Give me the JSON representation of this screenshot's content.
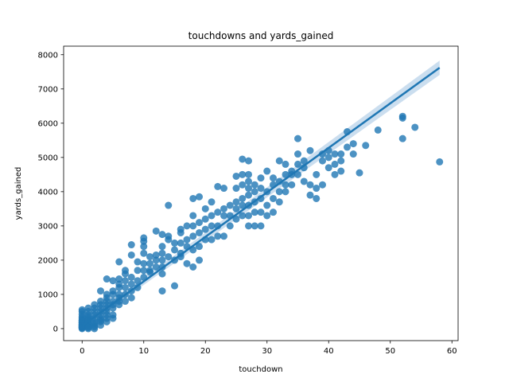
{
  "chart_data": {
    "type": "scatter",
    "title": "touchdowns and yards_gained",
    "xlabel": "touchdown",
    "ylabel": "yards_gained",
    "xlim": [
      -3,
      61
    ],
    "ylim": [
      -350,
      8250
    ],
    "xticks": [
      0,
      10,
      20,
      30,
      40,
      50,
      60
    ],
    "yticks": [
      0,
      1000,
      2000,
      3000,
      4000,
      5000,
      6000,
      7000,
      8000
    ],
    "grid": false,
    "legend": "none",
    "colors": {
      "points": "#1f77b4",
      "line": "#1f77b4",
      "band": "#a8c8e4"
    },
    "regression": {
      "x": [
        0,
        58
      ],
      "y": [
        80,
        7620
      ],
      "ci_low": [
        0,
        7410
      ],
      "ci_high": [
        160,
        7830
      ]
    },
    "points": [
      [
        0,
        0
      ],
      [
        0,
        20
      ],
      [
        0,
        40
      ],
      [
        0,
        60
      ],
      [
        0,
        80
      ],
      [
        0,
        100
      ],
      [
        0,
        130
      ],
      [
        0,
        160
      ],
      [
        0,
        200
      ],
      [
        0,
        250
      ],
      [
        0,
        300
      ],
      [
        0,
        350
      ],
      [
        0,
        420
      ],
      [
        0,
        500
      ],
      [
        0,
        550
      ],
      [
        0,
        30
      ],
      [
        0,
        70
      ],
      [
        0,
        120
      ],
      [
        0,
        180
      ],
      [
        0,
        230
      ],
      [
        1,
        0
      ],
      [
        1,
        50
      ],
      [
        1,
        100
      ],
      [
        1,
        150
      ],
      [
        1,
        200
      ],
      [
        1,
        300
      ],
      [
        1,
        400
      ],
      [
        1,
        500
      ],
      [
        1,
        600
      ],
      [
        1,
        30
      ],
      [
        1,
        250
      ],
      [
        1,
        350
      ],
      [
        2,
        0
      ],
      [
        2,
        50
      ],
      [
        2,
        100
      ],
      [
        2,
        200
      ],
      [
        2,
        300
      ],
      [
        2,
        400
      ],
      [
        2,
        500
      ],
      [
        2,
        600
      ],
      [
        2,
        700
      ],
      [
        2,
        150
      ],
      [
        3,
        100
      ],
      [
        3,
        200
      ],
      [
        3,
        300
      ],
      [
        3,
        400
      ],
      [
        3,
        500
      ],
      [
        3,
        600
      ],
      [
        3,
        700
      ],
      [
        3,
        800
      ],
      [
        3,
        1100
      ],
      [
        3,
        250
      ],
      [
        4,
        200
      ],
      [
        4,
        300
      ],
      [
        4,
        400
      ],
      [
        4,
        500
      ],
      [
        4,
        600
      ],
      [
        4,
        700
      ],
      [
        4,
        800
      ],
      [
        4,
        900
      ],
      [
        4,
        1000
      ],
      [
        4,
        1450
      ],
      [
        5,
        400
      ],
      [
        5,
        600
      ],
      [
        5,
        700
      ],
      [
        5,
        800
      ],
      [
        5,
        1000
      ],
      [
        5,
        1100
      ],
      [
        5,
        1400
      ],
      [
        5,
        300
      ],
      [
        6,
        700
      ],
      [
        6,
        800
      ],
      [
        6,
        900
      ],
      [
        6,
        1000
      ],
      [
        6,
        1200
      ],
      [
        6,
        1300
      ],
      [
        6,
        1450
      ],
      [
        6,
        1950
      ],
      [
        7,
        800
      ],
      [
        7,
        1000
      ],
      [
        7,
        1200
      ],
      [
        7,
        1400
      ],
      [
        7,
        1600
      ],
      [
        7,
        1700
      ],
      [
        8,
        900
      ],
      [
        8,
        1100
      ],
      [
        8,
        1300
      ],
      [
        8,
        1500
      ],
      [
        8,
        2150
      ],
      [
        8,
        2450
      ],
      [
        9,
        1200
      ],
      [
        9,
        1400
      ],
      [
        9,
        1700
      ],
      [
        9,
        1950
      ],
      [
        10,
        1500
      ],
      [
        10,
        1700
      ],
      [
        10,
        1900
      ],
      [
        10,
        2200
      ],
      [
        10,
        2400
      ],
      [
        10,
        2550
      ],
      [
        10,
        2650
      ],
      [
        11,
        1700
      ],
      [
        11,
        1900
      ],
      [
        11,
        2100
      ],
      [
        11,
        1650
      ],
      [
        12,
        1800
      ],
      [
        12,
        2000
      ],
      [
        12,
        2150
      ],
      [
        12,
        2850
      ],
      [
        13,
        1100
      ],
      [
        13,
        1600
      ],
      [
        13,
        1800
      ],
      [
        13,
        2000
      ],
      [
        13,
        2200
      ],
      [
        13,
        2400
      ],
      [
        13,
        2750
      ],
      [
        14,
        2100
      ],
      [
        14,
        2600
      ],
      [
        14,
        2700
      ],
      [
        14,
        3600
      ],
      [
        15,
        1250
      ],
      [
        15,
        2000
      ],
      [
        15,
        2300
      ],
      [
        15,
        2500
      ],
      [
        16,
        2200
      ],
      [
        16,
        2500
      ],
      [
        16,
        2800
      ],
      [
        16,
        2900
      ],
      [
        16,
        2100
      ],
      [
        17,
        2400
      ],
      [
        17,
        2600
      ],
      [
        17,
        3000
      ],
      [
        17,
        1900
      ],
      [
        18,
        2300
      ],
      [
        18,
        2700
      ],
      [
        18,
        3000
      ],
      [
        18,
        3300
      ],
      [
        18,
        3800
      ],
      [
        18,
        1800
      ],
      [
        19,
        2000
      ],
      [
        19,
        2400
      ],
      [
        19,
        2800
      ],
      [
        19,
        3100
      ],
      [
        19,
        3850
      ],
      [
        20,
        2600
      ],
      [
        20,
        2900
      ],
      [
        20,
        3200
      ],
      [
        20,
        3500
      ],
      [
        21,
        2600
      ],
      [
        21,
        3000
      ],
      [
        21,
        3300
      ],
      [
        21,
        3700
      ],
      [
        22,
        2700
      ],
      [
        22,
        3000
      ],
      [
        22,
        3400
      ],
      [
        22,
        4150
      ],
      [
        23,
        3300
      ],
      [
        23,
        3500
      ],
      [
        23,
        4100
      ],
      [
        23,
        2700
      ],
      [
        24,
        3000
      ],
      [
        24,
        3300
      ],
      [
        24,
        3600
      ],
      [
        25,
        3200
      ],
      [
        25,
        3500
      ],
      [
        25,
        3700
      ],
      [
        25,
        4100
      ],
      [
        25,
        4450
      ],
      [
        26,
        3300
      ],
      [
        26,
        3600
      ],
      [
        26,
        3800
      ],
      [
        26,
        4200
      ],
      [
        26,
        4500
      ],
      [
        26,
        4950
      ],
      [
        27,
        3000
      ],
      [
        27,
        3300
      ],
      [
        27,
        3600
      ],
      [
        27,
        3900
      ],
      [
        27,
        4100
      ],
      [
        27,
        4300
      ],
      [
        27,
        4500
      ],
      [
        27,
        4900
      ],
      [
        28,
        3000
      ],
      [
        28,
        3400
      ],
      [
        28,
        3700
      ],
      [
        28,
        4000
      ],
      [
        28,
        4200
      ],
      [
        29,
        3000
      ],
      [
        29,
        3400
      ],
      [
        29,
        3800
      ],
      [
        29,
        4100
      ],
      [
        29,
        4400
      ],
      [
        30,
        3300
      ],
      [
        30,
        3600
      ],
      [
        30,
        4000
      ],
      [
        30,
        4600
      ],
      [
        31,
        3400
      ],
      [
        31,
        3800
      ],
      [
        31,
        4200
      ],
      [
        31,
        4400
      ],
      [
        32,
        3700
      ],
      [
        32,
        4000
      ],
      [
        32,
        4300
      ],
      [
        32,
        4900
      ],
      [
        33,
        4000
      ],
      [
        33,
        4200
      ],
      [
        33,
        4500
      ],
      [
        33,
        4800
      ],
      [
        34,
        4200
      ],
      [
        34,
        4500
      ],
      [
        34,
        4600
      ],
      [
        35,
        4500
      ],
      [
        35,
        4800
      ],
      [
        35,
        5100
      ],
      [
        35,
        5550
      ],
      [
        36,
        4300
      ],
      [
        36,
        4700
      ],
      [
        36,
        4900
      ],
      [
        37,
        3900
      ],
      [
        37,
        4200
      ],
      [
        37,
        5200
      ],
      [
        38,
        3800
      ],
      [
        38,
        4100
      ],
      [
        38,
        4500
      ],
      [
        39,
        4200
      ],
      [
        39,
        4900
      ],
      [
        39,
        5100
      ],
      [
        40,
        4700
      ],
      [
        40,
        5000
      ],
      [
        40,
        5200
      ],
      [
        41,
        4500
      ],
      [
        41,
        4800
      ],
      [
        41,
        5100
      ],
      [
        42,
        4600
      ],
      [
        42,
        4900
      ],
      [
        42,
        5100
      ],
      [
        43,
        5300
      ],
      [
        43,
        5750
      ],
      [
        44,
        5100
      ],
      [
        44,
        5400
      ],
      [
        45,
        4550
      ],
      [
        46,
        5350
      ],
      [
        48,
        5800
      ],
      [
        52,
        5550
      ],
      [
        52,
        6150
      ],
      [
        52,
        6200
      ],
      [
        54,
        5880
      ],
      [
        58,
        4870
      ]
    ]
  }
}
